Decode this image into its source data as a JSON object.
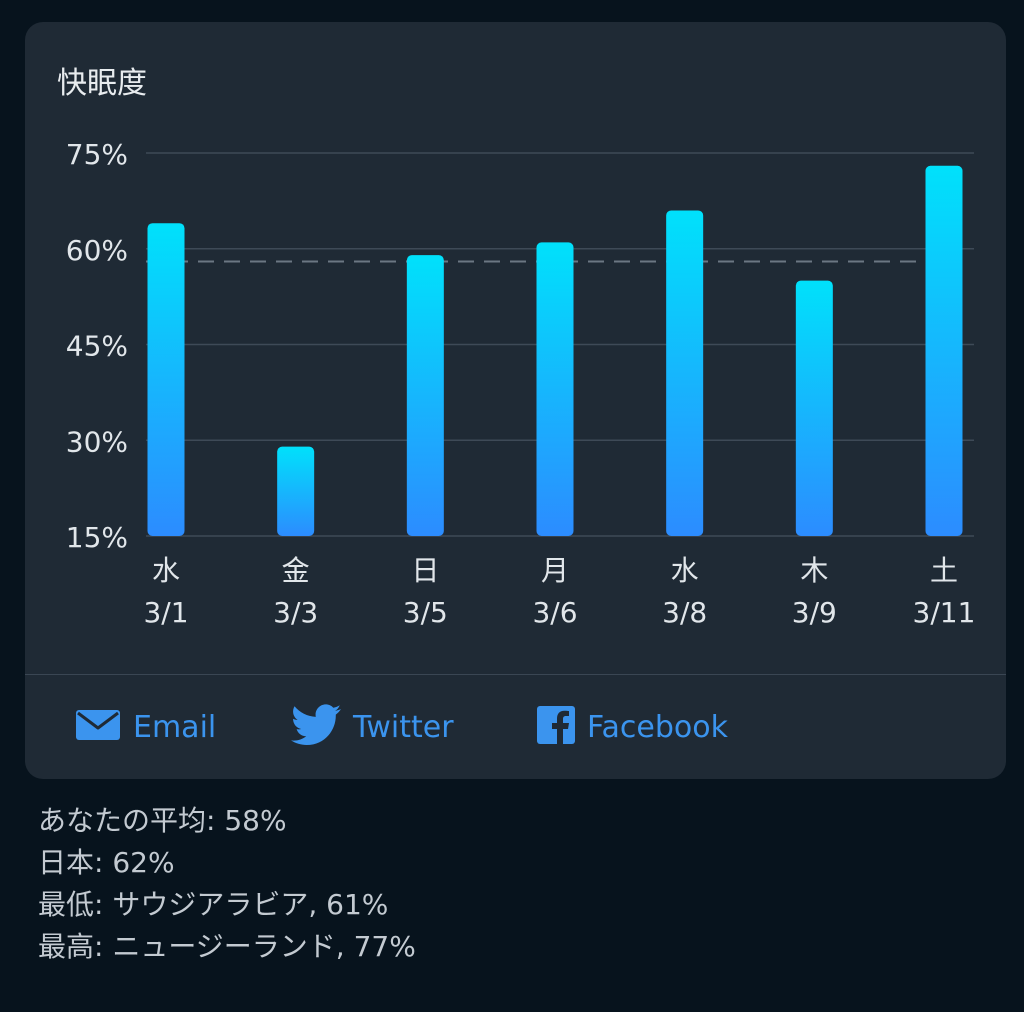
{
  "card": {
    "title": "快眠度"
  },
  "chart_data": {
    "type": "bar",
    "title": "快眠度",
    "categories": [
      {
        "day": "水",
        "date": "3/1"
      },
      {
        "day": "金",
        "date": "3/3"
      },
      {
        "day": "日",
        "date": "3/5"
      },
      {
        "day": "月",
        "date": "3/6"
      },
      {
        "day": "水",
        "date": "3/8"
      },
      {
        "day": "木",
        "date": "3/9"
      },
      {
        "day": "土",
        "date": "3/11"
      }
    ],
    "values": [
      64,
      29,
      59,
      61,
      66,
      55,
      73
    ],
    "ylim": [
      15,
      75
    ],
    "yticks": [
      "15%",
      "30%",
      "45%",
      "60%",
      "75%"
    ],
    "ytick_values": [
      15,
      30,
      45,
      60,
      75
    ],
    "average_line": 58,
    "grid": true,
    "bar_color_top": "#00e1fb",
    "bar_color_bottom": "#2c8cff"
  },
  "share": {
    "email_label": "Email",
    "twitter_label": "Twitter",
    "facebook_label": "Facebook",
    "accent_color": "#3b94ee"
  },
  "stats": {
    "average": "あなたの平均: 58%",
    "country": "日本: 62%",
    "lowest": "最低: サウジアラビア, 61%",
    "highest": "最高: ニュージーランド, 77%"
  }
}
